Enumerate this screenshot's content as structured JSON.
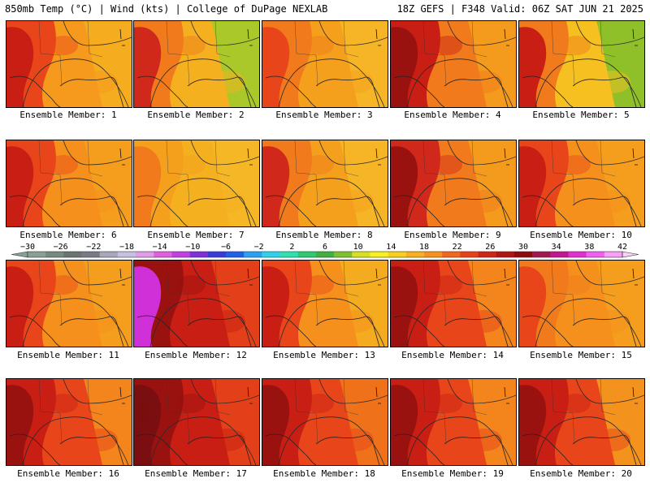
{
  "header": {
    "left": "850mb Temp (°C) | Wind (kts) | College of DuPage NEXLAB",
    "right": "18Z GEFS | F348 Valid: 06Z SAT JUN 21 2025"
  },
  "label_prefix": "Ensemble Member:",
  "members": [
    {
      "label": "Ensemble Member: 1",
      "colors": [
        "#c81e14",
        "#e8461a",
        "#f59a1d",
        "#f5b020"
      ]
    },
    {
      "label": "Ensemble Member: 2",
      "colors": [
        "#d0281a",
        "#f07a1c",
        "#f5b020",
        "#9ccc2c"
      ]
    },
    {
      "label": "Ensemble Member: 3",
      "colors": [
        "#e8461a",
        "#f07a1c",
        "#f5a01d",
        "#f5b828"
      ]
    },
    {
      "label": "Ensemble Member: 4",
      "colors": [
        "#9a1210",
        "#c81e14",
        "#f07a1c",
        "#f5a01d"
      ]
    },
    {
      "label": "Ensemble Member: 5",
      "colors": [
        "#c81e14",
        "#f07a1c",
        "#f5c020",
        "#7cc02c"
      ]
    },
    {
      "label": "Ensemble Member: 6",
      "colors": [
        "#c81e14",
        "#e8461a",
        "#f5901d",
        "#f5a01d"
      ]
    },
    {
      "label": "Ensemble Member: 7",
      "colors": [
        "#f07a1c",
        "#f5a01d",
        "#f5b020",
        "#f5b828"
      ]
    },
    {
      "label": "Ensemble Member: 8",
      "colors": [
        "#d0281a",
        "#f07a1c",
        "#f5a01d",
        "#f5b828"
      ]
    },
    {
      "label": "Ensemble Member: 9",
      "colors": [
        "#9a1210",
        "#d0281a",
        "#f07a1c",
        "#f5a01d"
      ]
    },
    {
      "label": "Ensemble Member: 10",
      "colors": [
        "#c81e14",
        "#e8461a",
        "#f5901d",
        "#f5a01d"
      ]
    },
    {
      "label": "Ensemble Member: 11",
      "colors": [
        "#c81e14",
        "#e8461a",
        "#f5901d",
        "#f5a01d"
      ]
    },
    {
      "label": "Ensemble Member: 12",
      "colors": [
        "#d030d8",
        "#9a1210",
        "#c81e14",
        "#e8461a"
      ]
    },
    {
      "label": "Ensemble Member: 13",
      "colors": [
        "#c81e14",
        "#e8461a",
        "#f5901d",
        "#f5b020"
      ]
    },
    {
      "label": "Ensemble Member: 14",
      "colors": [
        "#9a1210",
        "#c81e14",
        "#e8461a",
        "#f5901d"
      ]
    },
    {
      "label": "Ensemble Member: 15",
      "colors": [
        "#e8461a",
        "#f07a1c",
        "#f5901d",
        "#f5a01d"
      ]
    },
    {
      "label": "Ensemble Member: 16",
      "colors": [
        "#9a1210",
        "#c81e14",
        "#e8461a",
        "#f5901d"
      ]
    },
    {
      "label": "Ensemble Member: 17",
      "colors": [
        "#7a0e10",
        "#9a1210",
        "#c81e14",
        "#e8461a"
      ]
    },
    {
      "label": "Ensemble Member: 18",
      "colors": [
        "#9a1210",
        "#c81e14",
        "#e8461a",
        "#f07a1c"
      ]
    },
    {
      "label": "Ensemble Member: 19",
      "colors": [
        "#9a1210",
        "#c81e14",
        "#e8461a",
        "#f5901d"
      ]
    },
    {
      "label": "Ensemble Member: 20",
      "colors": [
        "#9a1210",
        "#c81e14",
        "#e8461a",
        "#f5a01d"
      ]
    }
  ],
  "colorbar": {
    "ticks": [
      "−30",
      "−26",
      "−22",
      "−18",
      "−14",
      "−10",
      "−6",
      "−2",
      "2",
      "6",
      "10",
      "14",
      "18",
      "22",
      "26",
      "30",
      "34",
      "38",
      "42"
    ],
    "colors": [
      "#8aa094",
      "#788a80",
      "#6a7470",
      "#7a7a84",
      "#a8a8b8",
      "#c8c0e0",
      "#e09ce8",
      "#e060e0",
      "#c040e0",
      "#8030d8",
      "#3a3ad8",
      "#2060e8",
      "#2aa0f0",
      "#30d0e8",
      "#30e0b0",
      "#30c870",
      "#40b040",
      "#80c030",
      "#d8e020",
      "#f8f020",
      "#f8d020",
      "#f8b020",
      "#f89020",
      "#f06820",
      "#e84018",
      "#d02418",
      "#b01414",
      "#8c0c10",
      "#a01850",
      "#c01890",
      "#e030d0",
      "#f060f0",
      "#f8a0f8"
    ]
  }
}
